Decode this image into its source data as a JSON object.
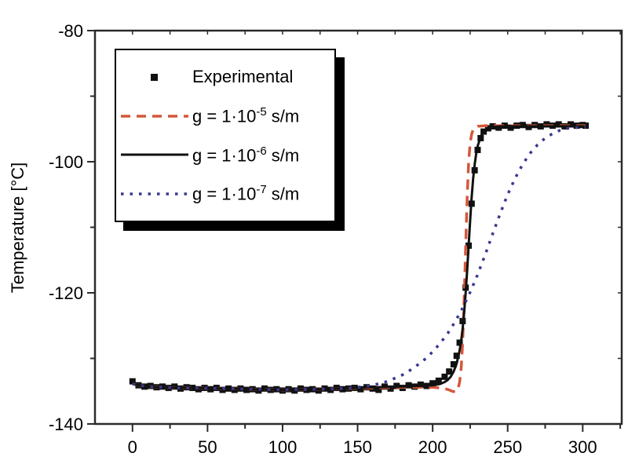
{
  "chart_data": {
    "type": "line",
    "title": "",
    "xlabel": "",
    "ylabel": "Temperature [°C]",
    "xlim": [
      -25,
      326
    ],
    "ylim": [
      -140,
      -80
    ],
    "grid": false,
    "x_major_ticks": [
      0,
      50,
      100,
      150,
      200,
      250,
      300
    ],
    "x_minor_ticks": [
      25,
      75,
      125,
      175,
      225,
      275,
      325
    ],
    "y_major_ticks": [
      -80,
      -100,
      -120,
      -140
    ],
    "y_minor_ticks": [
      -90,
      -110,
      -130
    ],
    "frame_color": "#2b2b2b",
    "series": [
      {
        "name": "Experimental",
        "type": "scatter",
        "marker": "square",
        "color": "#111111",
        "points": [
          [
            0,
            -133.5
          ],
          [
            4,
            -134.1
          ],
          [
            8,
            -134.3
          ],
          [
            12,
            -134.2
          ],
          [
            16,
            -134.4
          ],
          [
            20,
            -134.3
          ],
          [
            24,
            -134.5
          ],
          [
            28,
            -134.3
          ],
          [
            32,
            -134.6
          ],
          [
            36,
            -134.4
          ],
          [
            40,
            -134.5
          ],
          [
            44,
            -134.7
          ],
          [
            48,
            -134.5
          ],
          [
            52,
            -134.7
          ],
          [
            56,
            -134.5
          ],
          [
            60,
            -134.8
          ],
          [
            64,
            -134.6
          ],
          [
            68,
            -134.8
          ],
          [
            72,
            -134.6
          ],
          [
            76,
            -134.8
          ],
          [
            80,
            -134.7
          ],
          [
            84,
            -134.9
          ],
          [
            88,
            -134.6
          ],
          [
            92,
            -134.8
          ],
          [
            96,
            -134.7
          ],
          [
            100,
            -134.9
          ],
          [
            104,
            -134.7
          ],
          [
            108,
            -134.9
          ],
          [
            112,
            -134.6
          ],
          [
            116,
            -134.8
          ],
          [
            120,
            -134.7
          ],
          [
            124,
            -134.9
          ],
          [
            128,
            -134.6
          ],
          [
            132,
            -134.8
          ],
          [
            136,
            -134.5
          ],
          [
            140,
            -134.7
          ],
          [
            144,
            -134.6
          ],
          [
            148,
            -134.5
          ],
          [
            152,
            -134.7
          ],
          [
            156,
            -134.4
          ],
          [
            160,
            -134.6
          ],
          [
            164,
            -134.8
          ],
          [
            168,
            -134.3
          ],
          [
            172,
            -134.6
          ],
          [
            176,
            -134.2
          ],
          [
            180,
            -134.5
          ],
          [
            184,
            -134.1
          ],
          [
            188,
            -134.3
          ],
          [
            192,
            -134.0
          ],
          [
            196,
            -134.2
          ],
          [
            200,
            -133.8
          ],
          [
            204,
            -133.4
          ],
          [
            208,
            -132.8
          ],
          [
            211,
            -132.0
          ],
          [
            214,
            -130.9
          ],
          [
            216,
            -129.6
          ],
          [
            218,
            -127.6
          ],
          [
            220,
            -124.3
          ],
          [
            222,
            -119.2
          ],
          [
            224,
            -112.8
          ],
          [
            226,
            -106.4
          ],
          [
            228,
            -101.3
          ],
          [
            230,
            -98.2
          ],
          [
            232,
            -96.4
          ],
          [
            234,
            -95.4
          ],
          [
            237,
            -94.9
          ],
          [
            240,
            -94.6
          ],
          [
            244,
            -94.8
          ],
          [
            248,
            -94.5
          ],
          [
            252,
            -94.8
          ],
          [
            256,
            -94.5
          ],
          [
            260,
            -94.4
          ],
          [
            264,
            -94.7
          ],
          [
            268,
            -94.4
          ],
          [
            272,
            -94.6
          ],
          [
            276,
            -94.3
          ],
          [
            280,
            -94.5
          ],
          [
            284,
            -94.3
          ],
          [
            288,
            -94.6
          ],
          [
            292,
            -94.3
          ],
          [
            296,
            -94.5
          ],
          [
            300,
            -94.4
          ],
          [
            302,
            -94.5
          ]
        ]
      },
      {
        "name": "g = 1·10^-5 s/m",
        "type": "line",
        "style": "dashed",
        "dash": "13 8",
        "width": 3.5,
        "color": "#d5573b",
        "points": [
          [
            0,
            -133.9
          ],
          [
            10,
            -134.3
          ],
          [
            20,
            -134.4
          ],
          [
            30,
            -134.5
          ],
          [
            40,
            -134.5
          ],
          [
            60,
            -134.6
          ],
          [
            80,
            -134.7
          ],
          [
            100,
            -134.8
          ],
          [
            120,
            -134.7
          ],
          [
            140,
            -134.6
          ],
          [
            160,
            -134.5
          ],
          [
            180,
            -134.4
          ],
          [
            190,
            -134.4
          ],
          [
            200,
            -134.4
          ],
          [
            205,
            -134.5
          ],
          [
            208,
            -134.6
          ],
          [
            211,
            -134.8
          ],
          [
            213,
            -135.0
          ],
          [
            215,
            -135.1
          ],
          [
            216,
            -135.0
          ],
          [
            217,
            -134.6
          ],
          [
            218,
            -133.6
          ],
          [
            219,
            -131.5
          ],
          [
            220,
            -127.5
          ],
          [
            221,
            -121.0
          ],
          [
            222,
            -113.0
          ],
          [
            223,
            -105.5
          ],
          [
            224,
            -100.0
          ],
          [
            225,
            -97.2
          ],
          [
            226,
            -95.8
          ],
          [
            227,
            -95.1
          ],
          [
            228,
            -94.8
          ],
          [
            230,
            -94.6
          ],
          [
            235,
            -94.5
          ],
          [
            240,
            -94.5
          ],
          [
            250,
            -94.5
          ],
          [
            260,
            -94.5
          ],
          [
            270,
            -94.5
          ],
          [
            280,
            -94.5
          ],
          [
            290,
            -94.5
          ],
          [
            300,
            -94.5
          ],
          [
            302,
            -94.5
          ]
        ]
      },
      {
        "name": "g = 1·10^-6 s/m",
        "type": "line",
        "style": "solid",
        "dash": "",
        "width": 3,
        "color": "#111111",
        "points": [
          [
            0,
            -133.9
          ],
          [
            10,
            -134.3
          ],
          [
            20,
            -134.4
          ],
          [
            30,
            -134.5
          ],
          [
            40,
            -134.5
          ],
          [
            60,
            -134.6
          ],
          [
            80,
            -134.7
          ],
          [
            100,
            -134.8
          ],
          [
            120,
            -134.7
          ],
          [
            140,
            -134.6
          ],
          [
            160,
            -134.4
          ],
          [
            180,
            -134.3
          ],
          [
            190,
            -134.2
          ],
          [
            200,
            -134.1
          ],
          [
            205,
            -133.9
          ],
          [
            208,
            -133.6
          ],
          [
            210,
            -133.3
          ],
          [
            212,
            -132.8
          ],
          [
            214,
            -132.0
          ],
          [
            216,
            -130.8
          ],
          [
            218,
            -128.8
          ],
          [
            219,
            -127.3
          ],
          [
            220,
            -125.4
          ],
          [
            221,
            -123.0
          ],
          [
            222,
            -120.0
          ],
          [
            223,
            -116.6
          ],
          [
            224,
            -112.8
          ],
          [
            225,
            -109.0
          ],
          [
            226,
            -105.5
          ],
          [
            227,
            -102.6
          ],
          [
            228,
            -100.4
          ],
          [
            229,
            -98.8
          ],
          [
            230,
            -97.6
          ],
          [
            232,
            -96.2
          ],
          [
            234,
            -95.4
          ],
          [
            236,
            -95.0
          ],
          [
            238,
            -94.8
          ],
          [
            240,
            -94.7
          ],
          [
            245,
            -94.6
          ],
          [
            250,
            -94.6
          ],
          [
            260,
            -94.6
          ],
          [
            270,
            -94.6
          ],
          [
            280,
            -94.6
          ],
          [
            290,
            -94.6
          ],
          [
            300,
            -94.6
          ],
          [
            302,
            -94.6
          ]
        ]
      },
      {
        "name": "g = 1·10^-7 s/m",
        "type": "line",
        "style": "dotted",
        "dash": "3.5 8",
        "width": 3.5,
        "color": "#39398f",
        "points": [
          [
            0,
            -133.9
          ],
          [
            10,
            -134.3
          ],
          [
            20,
            -134.4
          ],
          [
            30,
            -134.5
          ],
          [
            40,
            -134.5
          ],
          [
            60,
            -134.6
          ],
          [
            80,
            -134.7
          ],
          [
            100,
            -134.8
          ],
          [
            120,
            -134.7
          ],
          [
            130,
            -134.7
          ],
          [
            140,
            -134.6
          ],
          [
            150,
            -134.4
          ],
          [
            155,
            -134.3
          ],
          [
            160,
            -134.1
          ],
          [
            165,
            -133.8
          ],
          [
            170,
            -133.5
          ],
          [
            175,
            -133.0
          ],
          [
            180,
            -132.5
          ],
          [
            185,
            -131.8
          ],
          [
            190,
            -131.0
          ],
          [
            195,
            -130.1
          ],
          [
            200,
            -129.0
          ],
          [
            205,
            -127.7
          ],
          [
            210,
            -126.2
          ],
          [
            215,
            -124.4
          ],
          [
            220,
            -122.3
          ],
          [
            225,
            -119.9
          ],
          [
            230,
            -117.2
          ],
          [
            235,
            -114.2
          ],
          [
            240,
            -111.0
          ],
          [
            245,
            -107.9
          ],
          [
            250,
            -105.0
          ],
          [
            255,
            -102.5
          ],
          [
            260,
            -100.4
          ],
          [
            265,
            -98.7
          ],
          [
            270,
            -97.4
          ],
          [
            275,
            -96.4
          ],
          [
            280,
            -95.7
          ],
          [
            285,
            -95.2
          ],
          [
            290,
            -94.9
          ],
          [
            295,
            -94.8
          ],
          [
            300,
            -94.7
          ],
          [
            302,
            -94.7
          ]
        ]
      }
    ],
    "legend_position": "top-left"
  },
  "legend": {
    "entries": [
      {
        "label": "Experimental",
        "marker": "square"
      },
      {
        "prefix": "g = 1·10",
        "sup": "-5",
        "suffix": " s/m",
        "line": "dashed"
      },
      {
        "prefix": "g = 1·10",
        "sup": "-6",
        "suffix": " s/m",
        "line": "solid"
      },
      {
        "prefix": "g = 1·10",
        "sup": "-7",
        "suffix": " s/m",
        "line": "dotted"
      }
    ]
  }
}
